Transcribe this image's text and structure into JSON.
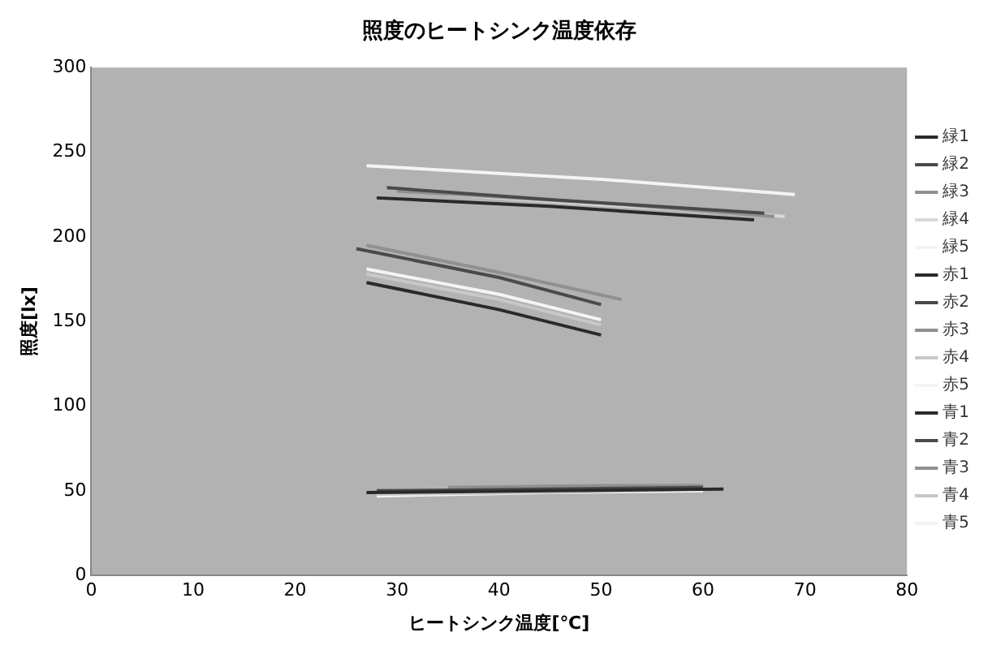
{
  "chart_data": {
    "type": "line",
    "title": "照度のヒートシンク温度依存",
    "xlabel": "ヒートシンク温度[℃]",
    "ylabel": "照度[lx]",
    "xlim": [
      0,
      80
    ],
    "xticks": [
      0,
      10,
      20,
      30,
      40,
      50,
      60,
      70,
      80
    ],
    "ylim": [
      0,
      300
    ],
    "yticks": [
      0,
      50,
      100,
      150,
      200,
      250,
      300
    ],
    "grid": false,
    "legend": "right",
    "marker": "none",
    "line_style": "solid",
    "series": [
      {
        "name": "緑1",
        "color": "#2a2a2a",
        "x": [
          28,
          45,
          65
        ],
        "values": [
          223,
          218,
          210
        ]
      },
      {
        "name": "緑2",
        "color": "#4a4a4a",
        "x": [
          29,
          45,
          66
        ],
        "values": [
          229,
          222,
          214
        ]
      },
      {
        "name": "緑3",
        "color": "#909090",
        "x": [
          30,
          50,
          67
        ],
        "values": [
          227,
          220,
          212
        ]
      },
      {
        "name": "緑4",
        "color": "#d8d8d8",
        "x": [
          35,
          50,
          68
        ],
        "values": [
          225,
          219,
          212
        ]
      },
      {
        "name": "緑5",
        "color": "#f4f4f4",
        "x": [
          27,
          50,
          69
        ],
        "values": [
          242,
          234,
          225
        ]
      },
      {
        "name": "赤1",
        "color": "#2a2a2a",
        "x": [
          27,
          40,
          50
        ],
        "values": [
          173,
          157,
          142
        ]
      },
      {
        "name": "赤2",
        "color": "#4a4a4a",
        "x": [
          26,
          40,
          50
        ],
        "values": [
          193,
          176,
          160
        ]
      },
      {
        "name": "赤3",
        "color": "#909090",
        "x": [
          27,
          40,
          52
        ],
        "values": [
          195,
          179,
          163
        ]
      },
      {
        "name": "赤4",
        "color": "#c8c8c8",
        "x": [
          27,
          40,
          50
        ],
        "values": [
          178,
          163,
          148
        ]
      },
      {
        "name": "赤5",
        "color": "#f4f4f4",
        "x": [
          27,
          40,
          50
        ],
        "values": [
          181,
          166,
          151
        ]
      },
      {
        "name": "青1",
        "color": "#2a2a2a",
        "x": [
          27,
          45,
          62
        ],
        "values": [
          49,
          50,
          51
        ]
      },
      {
        "name": "青2",
        "color": "#4a4a4a",
        "x": [
          28,
          45,
          60
        ],
        "values": [
          50,
          51,
          52
        ]
      },
      {
        "name": "青3",
        "color": "#909090",
        "x": [
          35,
          50,
          60
        ],
        "values": [
          52,
          53,
          53
        ]
      },
      {
        "name": "青4",
        "color": "#c8c8c8",
        "x": [
          28,
          45,
          60
        ],
        "values": [
          48,
          49,
          51
        ]
      },
      {
        "name": "青5",
        "color": "#f4f4f4",
        "x": [
          28,
          45,
          60
        ],
        "values": [
          47,
          49,
          50
        ]
      }
    ]
  }
}
